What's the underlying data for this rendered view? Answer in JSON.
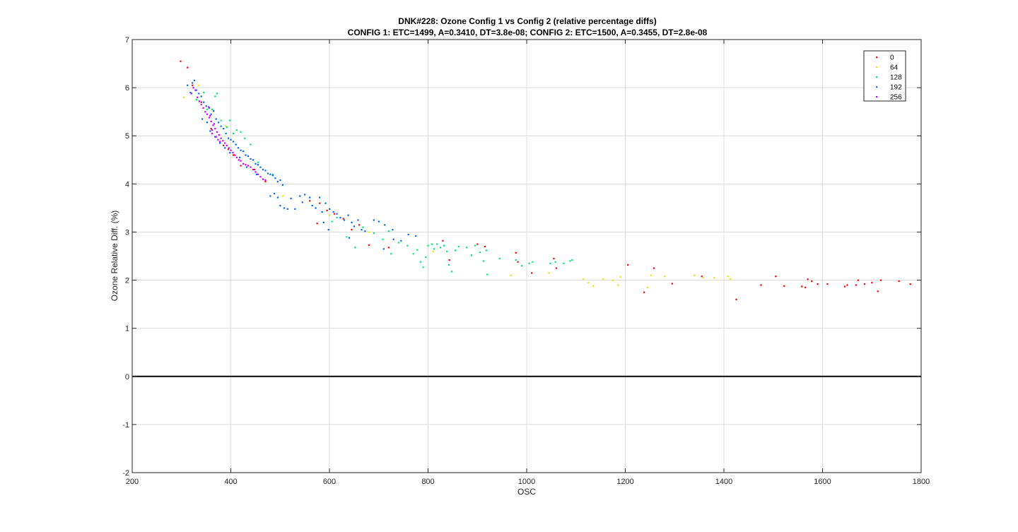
{
  "chart_data": {
    "type": "scatter",
    "title": "DNK#228: Ozone Config 1 vs Config 2 (relative percentage diffs)",
    "subtitle": "CONFIG 1: ETC=1499, A=0.3410, DT=3.8e-08; CONFIG 2: ETC=1500, A=0.3455, DT=2.8e-08",
    "xlabel": "OSC",
    "ylabel": "Ozone Relative Diff. (%)",
    "xlim": [
      200,
      1800
    ],
    "ylim": [
      -2,
      7
    ],
    "xticks": [
      "200",
      "400",
      "600",
      "800",
      "1000",
      "1200",
      "1400",
      "1600",
      "1800"
    ],
    "yticks": [
      "-2",
      "-1",
      "0",
      "1",
      "2",
      "3",
      "4",
      "5",
      "6",
      "7"
    ],
    "grid": true,
    "legend_position": "top-right",
    "reference_line_y": 0,
    "series": [
      {
        "name": "0",
        "color": "#ff0000",
        "points": [
          [
            298,
            6.55
          ],
          [
            312,
            6.42
          ],
          [
            322,
            6.05
          ],
          [
            340,
            5.7
          ],
          [
            360,
            5.15
          ],
          [
            385,
            4.8
          ],
          [
            395,
            4.72
          ],
          [
            405,
            4.6
          ],
          [
            420,
            4.38
          ],
          [
            448,
            4.3
          ],
          [
            470,
            4.05
          ],
          [
            560,
            3.65
          ],
          [
            575,
            3.18
          ],
          [
            580,
            3.6
          ],
          [
            595,
            3.45
          ],
          [
            610,
            3.38
          ],
          [
            628,
            3.28
          ],
          [
            645,
            3.05
          ],
          [
            660,
            3.15
          ],
          [
            680,
            2.73
          ],
          [
            720,
            2.68
          ],
          [
            830,
            2.82
          ],
          [
            843,
            2.42
          ],
          [
            900,
            2.75
          ],
          [
            915,
            2.7
          ],
          [
            978,
            2.57
          ],
          [
            982,
            2.38
          ],
          [
            1010,
            2.15
          ],
          [
            1055,
            2.45
          ],
          [
            1060,
            2.25
          ],
          [
            1205,
            2.32
          ],
          [
            1238,
            1.75
          ],
          [
            1258,
            2.25
          ],
          [
            1295,
            1.93
          ],
          [
            1355,
            2.08
          ],
          [
            1425,
            1.6
          ],
          [
            1475,
            1.9
          ],
          [
            1505,
            2.08
          ],
          [
            1522,
            1.88
          ],
          [
            1558,
            1.87
          ],
          [
            1565,
            1.85
          ],
          [
            1570,
            2.02
          ],
          [
            1578,
            1.98
          ],
          [
            1590,
            1.92
          ],
          [
            1610,
            1.92
          ],
          [
            1645,
            1.87
          ],
          [
            1650,
            1.9
          ],
          [
            1668,
            1.9
          ],
          [
            1672,
            2.0
          ],
          [
            1685,
            1.92
          ],
          [
            1700,
            1.95
          ],
          [
            1712,
            1.77
          ],
          [
            1718,
            2.0
          ],
          [
            1755,
            1.98
          ],
          [
            1778,
            1.92
          ]
        ]
      },
      {
        "name": "64",
        "color": "#e6e600",
        "points": [
          [
            305,
            5.8
          ],
          [
            335,
            6.05
          ],
          [
            365,
            5.5
          ],
          [
            390,
            5.2
          ],
          [
            505,
            3.75
          ],
          [
            600,
            3.35
          ],
          [
            680,
            3.0
          ],
          [
            810,
            2.6
          ],
          [
            968,
            2.1
          ],
          [
            1045,
            2.15
          ],
          [
            1115,
            2.02
          ],
          [
            1125,
            1.95
          ],
          [
            1135,
            1.88
          ],
          [
            1155,
            2.02
          ],
          [
            1175,
            2.0
          ],
          [
            1185,
            1.9
          ],
          [
            1190,
            2.07
          ],
          [
            1245,
            1.85
          ],
          [
            1252,
            2.1
          ],
          [
            1280,
            2.08
          ],
          [
            1340,
            2.1
          ],
          [
            1358,
            2.05
          ],
          [
            1380,
            2.05
          ],
          [
            1408,
            2.08
          ],
          [
            1413,
            2.02
          ]
        ]
      },
      {
        "name": "128",
        "color": "#00e676",
        "points": [
          [
            330,
            5.75
          ],
          [
            345,
            5.9
          ],
          [
            352,
            5.55
          ],
          [
            362,
            5.55
          ],
          [
            368,
            5.82
          ],
          [
            372,
            5.88
          ],
          [
            380,
            5.32
          ],
          [
            392,
            5.18
          ],
          [
            398,
            5.32
          ],
          [
            405,
            5.05
          ],
          [
            412,
            5.12
          ],
          [
            420,
            5.08
          ],
          [
            428,
            4.95
          ],
          [
            440,
            4.82
          ],
          [
            455,
            4.45
          ],
          [
            485,
            4.2
          ],
          [
            605,
            3.22
          ],
          [
            615,
            3.3
          ],
          [
            635,
            2.9
          ],
          [
            652,
            2.68
          ],
          [
            668,
            3.1
          ],
          [
            690,
            2.98
          ],
          [
            708,
            2.85
          ],
          [
            720,
            3.02
          ],
          [
            725,
            2.55
          ],
          [
            740,
            2.78
          ],
          [
            758,
            2.72
          ],
          [
            770,
            2.55
          ],
          [
            778,
            2.63
          ],
          [
            785,
            2.38
          ],
          [
            790,
            2.27
          ],
          [
            795,
            2.48
          ],
          [
            800,
            2.72
          ],
          [
            808,
            2.75
          ],
          [
            812,
            2.65
          ],
          [
            818,
            2.75
          ],
          [
            825,
            2.68
          ],
          [
            832,
            2.72
          ],
          [
            838,
            2.6
          ],
          [
            842,
            2.32
          ],
          [
            848,
            2.18
          ],
          [
            855,
            2.62
          ],
          [
            862,
            2.7
          ],
          [
            878,
            2.68
          ],
          [
            888,
            2.52
          ],
          [
            895,
            2.72
          ],
          [
            905,
            2.58
          ],
          [
            912,
            2.4
          ],
          [
            918,
            2.62
          ],
          [
            920,
            2.12
          ],
          [
            945,
            2.45
          ],
          [
            978,
            2.42
          ],
          [
            990,
            2.3
          ],
          [
            1005,
            2.35
          ],
          [
            1012,
            2.38
          ],
          [
            1048,
            2.35
          ],
          [
            1058,
            2.38
          ],
          [
            1075,
            2.35
          ],
          [
            1088,
            2.4
          ],
          [
            1092,
            2.42
          ]
        ]
      },
      {
        "name": "192",
        "color": "#0066ff",
        "points": [
          [
            312,
            6.05
          ],
          [
            318,
            5.9
          ],
          [
            322,
            6.1
          ],
          [
            326,
            6.15
          ],
          [
            330,
            5.95
          ],
          [
            335,
            5.88
          ],
          [
            340,
            5.82
          ],
          [
            345,
            5.7
          ],
          [
            350,
            5.62
          ],
          [
            356,
            5.58
          ],
          [
            360,
            5.45
          ],
          [
            365,
            5.52
          ],
          [
            370,
            5.35
          ],
          [
            375,
            5.28
          ],
          [
            380,
            5.2
          ],
          [
            385,
            5.15
          ],
          [
            390,
            5.05
          ],
          [
            395,
            4.95
          ],
          [
            400,
            4.92
          ],
          [
            405,
            4.88
          ],
          [
            410,
            4.82
          ],
          [
            415,
            4.75
          ],
          [
            420,
            4.7
          ],
          [
            425,
            4.68
          ],
          [
            430,
            4.6
          ],
          [
            435,
            4.58
          ],
          [
            440,
            4.52
          ],
          [
            445,
            4.5
          ],
          [
            450,
            4.42
          ],
          [
            455,
            4.4
          ],
          [
            460,
            4.35
          ],
          [
            465,
            4.3
          ],
          [
            470,
            4.28
          ],
          [
            475,
            4.22
          ],
          [
            480,
            4.2
          ],
          [
            485,
            4.18
          ],
          [
            490,
            4.12
          ],
          [
            495,
            4.05
          ],
          [
            500,
            4.08
          ],
          [
            505,
            3.98
          ],
          [
            480,
            3.75
          ],
          [
            488,
            3.8
          ],
          [
            495,
            3.72
          ],
          [
            500,
            3.55
          ],
          [
            508,
            3.5
          ],
          [
            515,
            3.48
          ],
          [
            522,
            3.7
          ],
          [
            530,
            3.48
          ],
          [
            540,
            3.75
          ],
          [
            545,
            3.62
          ],
          [
            550,
            3.78
          ],
          [
            560,
            3.72
          ],
          [
            565,
            3.55
          ],
          [
            572,
            3.5
          ],
          [
            580,
            3.72
          ],
          [
            585,
            3.42
          ],
          [
            592,
            3.6
          ],
          [
            600,
            3.48
          ],
          [
            608,
            3.42
          ],
          [
            615,
            3.38
          ],
          [
            622,
            3.3
          ],
          [
            630,
            3.25
          ],
          [
            638,
            3.35
          ],
          [
            645,
            3.2
          ],
          [
            650,
            3.12
          ],
          [
            658,
            3.25
          ],
          [
            665,
            3.05
          ],
          [
            672,
            3.02
          ],
          [
            690,
            3.25
          ],
          [
            700,
            3.22
          ],
          [
            712,
            3.15
          ],
          [
            728,
            3.05
          ],
          [
            745,
            2.82
          ],
          [
            760,
            2.95
          ],
          [
            775,
            2.92
          ],
          [
            588,
            3.2
          ],
          [
            598,
            3.05
          ],
          [
            640,
            2.88
          ],
          [
            710,
            2.65
          ],
          [
            730,
            2.85
          ],
          [
            342,
            5.35
          ],
          [
            352,
            5.28
          ],
          [
            358,
            5.1
          ],
          [
            368,
            4.98
          ],
          [
            378,
            4.85
          ],
          [
            388,
            4.75
          ],
          [
            398,
            4.65
          ],
          [
            418,
            4.55
          ],
          [
            432,
            4.35
          ],
          [
            452,
            4.2
          ]
        ]
      },
      {
        "name": "256",
        "color": "#cc00ff",
        "points": [
          [
            320,
            5.88
          ],
          [
            324,
            6.0
          ],
          [
            328,
            5.95
          ],
          [
            332,
            5.8
          ],
          [
            336,
            5.72
          ],
          [
            340,
            5.65
          ],
          [
            344,
            5.58
          ],
          [
            348,
            5.5
          ],
          [
            352,
            5.45
          ],
          [
            356,
            5.38
          ],
          [
            360,
            5.3
          ],
          [
            364,
            5.22
          ],
          [
            368,
            5.15
          ],
          [
            372,
            5.08
          ],
          [
            376,
            5.02
          ],
          [
            380,
            4.95
          ],
          [
            384,
            4.9
          ],
          [
            388,
            4.85
          ],
          [
            392,
            4.8
          ],
          [
            396,
            4.75
          ],
          [
            400,
            4.7
          ],
          [
            404,
            4.65
          ],
          [
            408,
            4.6
          ],
          [
            412,
            4.55
          ],
          [
            416,
            4.5
          ],
          [
            420,
            4.48
          ],
          [
            425,
            4.42
          ],
          [
            430,
            4.4
          ],
          [
            435,
            4.38
          ],
          [
            440,
            4.35
          ],
          [
            445,
            4.3
          ],
          [
            450,
            4.25
          ],
          [
            455,
            4.2
          ],
          [
            460,
            4.15
          ],
          [
            465,
            4.1
          ],
          [
            470,
            4.08
          ],
          [
            355,
            5.6
          ],
          [
            362,
            5.12
          ],
          [
            370,
            4.98
          ],
          [
            378,
            4.88
          ],
          [
            362,
            5.05
          ],
          [
            358,
            5.42
          ],
          [
            366,
            5.25
          ],
          [
            374,
            4.92
          ]
        ]
      }
    ]
  }
}
